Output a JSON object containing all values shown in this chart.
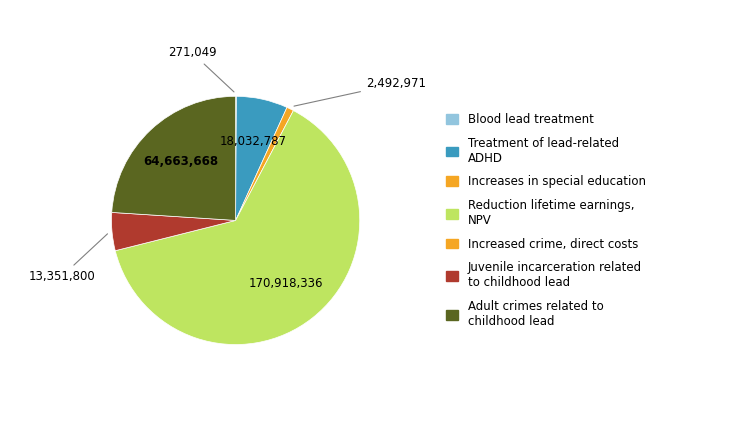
{
  "labels": [
    "Blood lead treatment",
    "Treatment of lead-related\nADHD",
    "Increases in special education",
    "Reduction lifetime earnings,\nNPV",
    "Increased crime, direct costs",
    "Juvenile incarceration related\nto childhood lead",
    "Adult crimes related to\nchildhood lead"
  ],
  "values": [
    271049,
    18032787,
    2492971,
    170918336,
    0,
    13351800,
    64663668
  ],
  "colors": [
    "#92c5de",
    "#3a9bbf",
    "#f5a623",
    "#bee560",
    "#f5a623",
    "#b03a2e",
    "#5a6620"
  ],
  "slice_labels": [
    "271,049",
    "18,032,787",
    "2,492,971",
    "170,918,336",
    "",
    "13,351,800",
    "64,663,668"
  ],
  "figsize": [
    7.48,
    4.28
  ],
  "dpi": 100
}
